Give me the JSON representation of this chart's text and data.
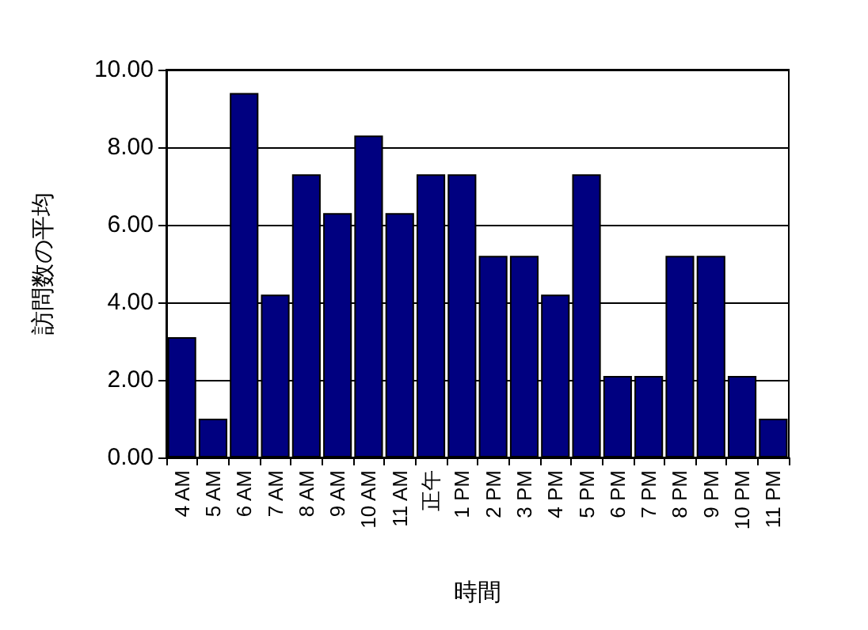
{
  "chart_data": {
    "type": "bar",
    "xlabel": "時間",
    "ylabel": "訪問数の平均",
    "categories": [
      "4 AM",
      "5 AM",
      "6 AM",
      "7 AM",
      "8 AM",
      "9 AM",
      "10 AM",
      "11 AM",
      "正午",
      "1 PM",
      "2 PM",
      "3 PM",
      "4 PM",
      "5 PM",
      "6 PM",
      "7 PM",
      "8 PM",
      "9 PM",
      "10 PM",
      "11 PM"
    ],
    "values": [
      3.1,
      1.0,
      9.4,
      4.2,
      7.3,
      6.3,
      8.3,
      6.3,
      7.3,
      7.3,
      5.2,
      5.2,
      4.2,
      7.3,
      2.1,
      2.1,
      5.2,
      5.2,
      2.1,
      1.0
    ],
    "color": "#000080",
    "ylim": [
      0,
      10
    ],
    "yticks": [
      {
        "value": 0,
        "label": "0.00"
      },
      {
        "value": 2,
        "label": "2.00"
      },
      {
        "value": 4,
        "label": "4.00"
      },
      {
        "value": 6,
        "label": "6.00"
      },
      {
        "value": 8,
        "label": "8.00"
      },
      {
        "value": 10,
        "label": "10.00"
      }
    ],
    "grid": "y"
  }
}
